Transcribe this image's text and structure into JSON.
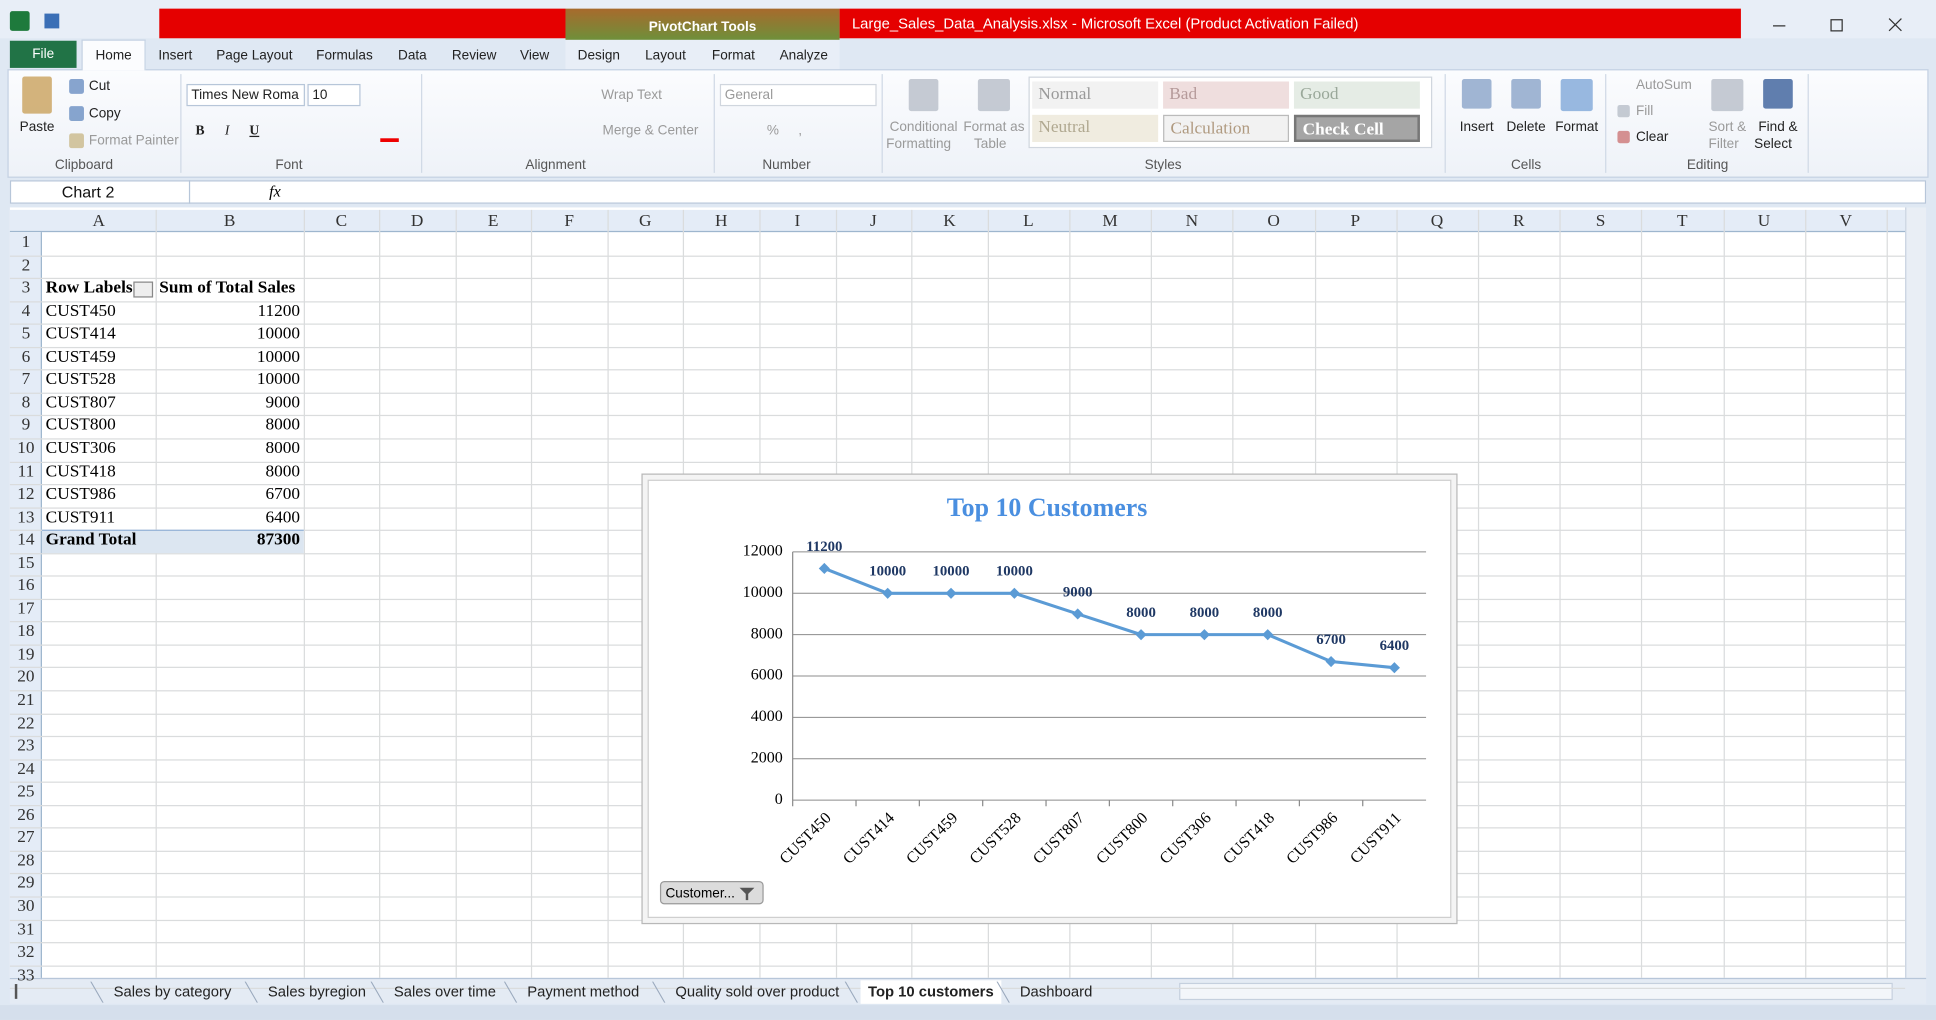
{
  "app": {
    "window_title": "Large_Sales_Data_Analysis.xlsx  -  Microsoft Excel (Product Activation Failed)",
    "context_tools": "PivotChart Tools"
  },
  "ribbon_tabs": {
    "file": "File",
    "tabs": [
      "Home",
      "Insert",
      "Page Layout",
      "Formulas",
      "Data",
      "Review",
      "View"
    ],
    "context_tabs": [
      "Design",
      "Layout",
      "Format",
      "Analyze"
    ]
  },
  "ribbon": {
    "clipboard": {
      "paste": "Paste",
      "cut": "Cut",
      "copy": "Copy",
      "format_painter": "Format Painter",
      "group": "Clipboard"
    },
    "font": {
      "font_name": "Times New Roma",
      "font_size": "10",
      "bold": "B",
      "italic": "I",
      "underline": "U",
      "group": "Font"
    },
    "alignment": {
      "wrap_text": "Wrap Text",
      "merge_center": "Merge & Center",
      "group": "Alignment"
    },
    "number": {
      "format": "General",
      "percent": "%",
      "comma": ",",
      "group": "Number"
    },
    "styles": {
      "conditional_formatting": [
        "Conditional",
        "Formatting"
      ],
      "format_as_table": [
        "Format as",
        "Table"
      ],
      "cell_styles": [
        "Normal",
        "Bad",
        "Good",
        "Neutral",
        "Calculation",
        "Check Cell"
      ],
      "group": "Styles"
    },
    "cells": {
      "insert": "Insert",
      "delete": "Delete",
      "format": "Format",
      "group": "Cells"
    },
    "editing": {
      "autosum": "AutoSum",
      "fill": "Fill",
      "clear": "Clear",
      "sort_filter": [
        "Sort &",
        "Filter"
      ],
      "find_select": [
        "Find &",
        "Select"
      ],
      "group": "Editing"
    }
  },
  "formula_bar": {
    "name_box": "Chart 2",
    "function_label": "fx"
  },
  "sheet": {
    "columns": [
      "A",
      "B",
      "C",
      "D",
      "E",
      "F",
      "G",
      "H",
      "I",
      "J",
      "K",
      "L",
      "M",
      "N",
      "O",
      "P",
      "Q",
      "R",
      "S",
      "T",
      "U",
      "V"
    ],
    "rows": [
      1,
      2,
      3,
      4,
      5,
      6,
      7,
      8,
      9,
      10,
      11,
      12,
      13,
      14,
      15,
      16,
      17,
      18,
      19,
      20,
      21,
      22,
      23,
      24,
      25,
      26,
      27,
      28,
      29,
      30,
      31,
      32,
      33
    ]
  },
  "pivot_table": {
    "headers": [
      "Row Labels",
      "Sum of Total Sales"
    ],
    "rows": [
      [
        "CUST450",
        11200
      ],
      [
        "CUST414",
        10000
      ],
      [
        "CUST459",
        10000
      ],
      [
        "CUST528",
        10000
      ],
      [
        "CUST807",
        9000
      ],
      [
        "CUST800",
        8000
      ],
      [
        "CUST306",
        8000
      ],
      [
        "CUST418",
        8000
      ],
      [
        "CUST986",
        6700
      ],
      [
        "CUST911",
        6400
      ]
    ],
    "grand_total": [
      "Grand Total",
      87300
    ]
  },
  "chart_data": {
    "type": "line",
    "title": "Top 10 Customers",
    "categories": [
      "CUST450",
      "CUST414",
      "CUST459",
      "CUST528",
      "CUST807",
      "CUST800",
      "CUST306",
      "CUST418",
      "CUST986",
      "CUST911"
    ],
    "values": [
      11200,
      10000,
      10000,
      10000,
      9000,
      8000,
      8000,
      8000,
      6700,
      6400
    ],
    "color": "#5b9bd5",
    "title_color": "#4a8fe0",
    "label_color": "#1f3864",
    "ylim": [
      0,
      12000
    ],
    "yticks": [
      0,
      2000,
      4000,
      6000,
      8000,
      10000,
      12000
    ],
    "grid": true,
    "data_labels": true,
    "field_button": "Customer..."
  },
  "sheet_tabs": {
    "tabs": [
      "Sales  by category",
      "Sales byregion",
      "Sales over time",
      "Payment method",
      "Quality sold over product",
      "Top 10 customers",
      "Dashboard"
    ],
    "active": 5
  }
}
